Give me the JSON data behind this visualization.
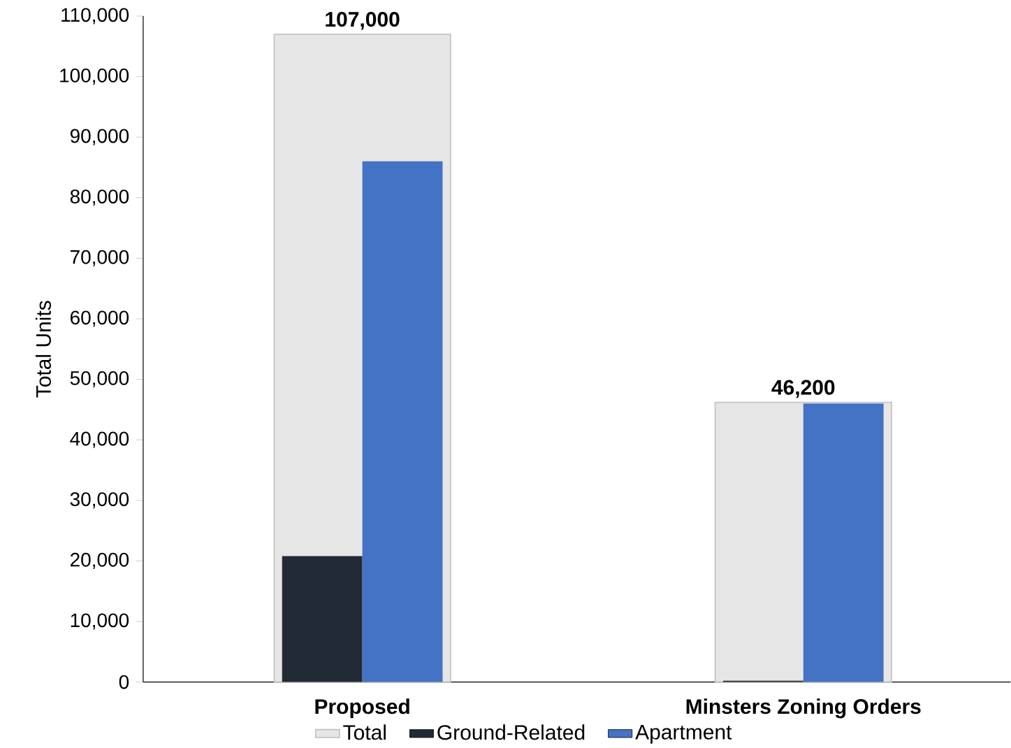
{
  "chart_data": {
    "type": "bar",
    "ylabel": "Total Units",
    "categories": [
      "Proposed",
      "Minsters Zoning Orders"
    ],
    "series": [
      {
        "name": "Total",
        "color": "#e7e6e6",
        "values": [
          107000,
          46200
        ],
        "value_labels": [
          "107,000",
          "46,200"
        ]
      },
      {
        "name": "Ground-Related",
        "color": "#222a35",
        "values": [
          20800,
          200
        ]
      },
      {
        "name": "Apartment",
        "color": "#4472c4",
        "values": [
          86000,
          46000
        ]
      }
    ],
    "ylim": [
      0,
      110000
    ],
    "yticks": [
      0,
      {
        "value": 10000,
        "label": "10,000"
      },
      {
        "value": 20000,
        "label": "20,000"
      },
      {
        "value": 30000,
        "label": "30,000"
      },
      {
        "value": 40000,
        "label": "40,000"
      },
      {
        "value": 50000,
        "label": "50,000"
      },
      {
        "value": 60000,
        "label": "60,000"
      },
      {
        "value": 70000,
        "label": "70,000"
      },
      {
        "value": 80000,
        "label": "80,000"
      },
      {
        "value": 90000,
        "label": "90,000"
      },
      {
        "value": 100000,
        "label": "100,000"
      },
      {
        "value": 110000,
        "label": "110,000"
      }
    ],
    "grid": false,
    "legend": "bottom"
  }
}
